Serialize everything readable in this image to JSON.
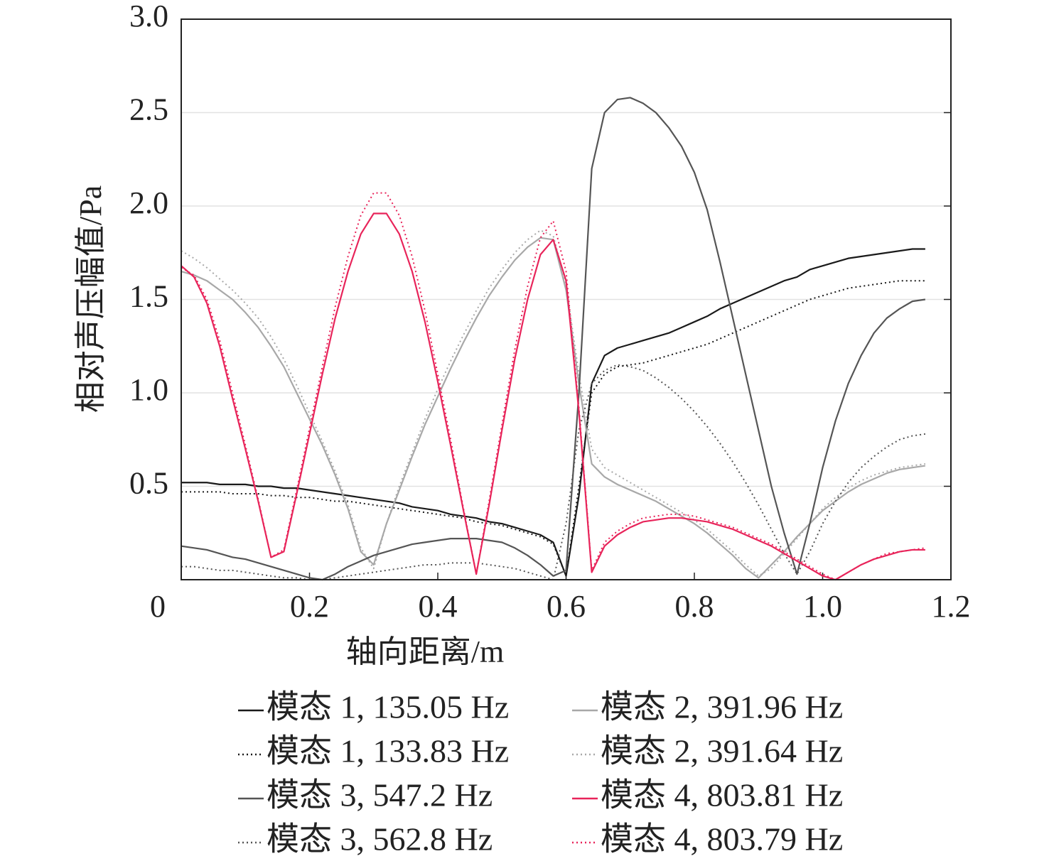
{
  "chart_data": {
    "type": "line",
    "xlabel": "轴向距离/m",
    "ylabel": "相对声压幅值/Pa",
    "x": [
      0,
      0.02,
      0.04,
      0.06,
      0.08,
      0.1,
      0.12,
      0.14,
      0.16,
      0.18,
      0.2,
      0.22,
      0.24,
      0.26,
      0.28,
      0.3,
      0.32,
      0.34,
      0.36,
      0.38,
      0.4,
      0.42,
      0.44,
      0.46,
      0.48,
      0.5,
      0.52,
      0.54,
      0.56,
      0.58,
      0.6,
      0.62,
      0.64,
      0.66,
      0.68,
      0.7,
      0.72,
      0.74,
      0.76,
      0.78,
      0.8,
      0.82,
      0.84,
      0.86,
      0.88,
      0.9,
      0.92,
      0.94,
      0.96,
      0.98,
      1.0,
      1.02,
      1.04,
      1.06,
      1.08,
      1.1,
      1.12,
      1.14,
      1.16
    ],
    "series": [
      {
        "name": "模态 1, 135.05 Hz",
        "color": "#1a1a1a",
        "style": "solid",
        "values": [
          0.52,
          0.52,
          0.52,
          0.51,
          0.51,
          0.51,
          0.5,
          0.5,
          0.49,
          0.49,
          0.48,
          0.47,
          0.46,
          0.45,
          0.44,
          0.43,
          0.42,
          0.41,
          0.39,
          0.38,
          0.37,
          0.35,
          0.34,
          0.33,
          0.31,
          0.3,
          0.28,
          0.26,
          0.24,
          0.2,
          0.02,
          0.45,
          1.05,
          1.2,
          1.24,
          1.26,
          1.28,
          1.3,
          1.32,
          1.35,
          1.38,
          1.41,
          1.45,
          1.48,
          1.51,
          1.54,
          1.57,
          1.6,
          1.62,
          1.66,
          1.68,
          1.7,
          1.72,
          1.73,
          1.74,
          1.75,
          1.76,
          1.77,
          1.77
        ]
      },
      {
        "name": "模态 1, 133.83 Hz",
        "color": "#1a1a1a",
        "style": "dotted",
        "values": [
          0.47,
          0.47,
          0.47,
          0.47,
          0.46,
          0.46,
          0.46,
          0.45,
          0.45,
          0.44,
          0.44,
          0.43,
          0.42,
          0.42,
          0.41,
          0.4,
          0.39,
          0.38,
          0.37,
          0.36,
          0.35,
          0.34,
          0.33,
          0.31,
          0.3,
          0.29,
          0.27,
          0.25,
          0.23,
          0.19,
          0.02,
          0.5,
          1.0,
          1.1,
          1.14,
          1.15,
          1.16,
          1.18,
          1.2,
          1.22,
          1.24,
          1.26,
          1.29,
          1.32,
          1.35,
          1.38,
          1.41,
          1.44,
          1.47,
          1.5,
          1.52,
          1.54,
          1.56,
          1.57,
          1.58,
          1.59,
          1.6,
          1.6,
          1.6
        ]
      },
      {
        "name": "模态 2, 391.96 Hz",
        "color": "#a8a8a8",
        "style": "solid",
        "values": [
          1.65,
          1.63,
          1.6,
          1.55,
          1.5,
          1.43,
          1.35,
          1.25,
          1.14,
          1.0,
          0.86,
          0.72,
          0.56,
          0.38,
          0.15,
          0.08,
          0.3,
          0.48,
          0.66,
          0.83,
          0.98,
          1.13,
          1.27,
          1.4,
          1.52,
          1.62,
          1.71,
          1.78,
          1.83,
          1.82,
          1.55,
          1.05,
          0.62,
          0.55,
          0.51,
          0.48,
          0.45,
          0.42,
          0.38,
          0.34,
          0.3,
          0.25,
          0.19,
          0.13,
          0.06,
          0.01,
          0.08,
          0.15,
          0.23,
          0.3,
          0.37,
          0.42,
          0.47,
          0.51,
          0.54,
          0.57,
          0.59,
          0.6,
          0.61
        ]
      },
      {
        "name": "模态 2, 391.64 Hz",
        "color": "#a8a8a8",
        "style": "dotted",
        "values": [
          1.76,
          1.72,
          1.67,
          1.61,
          1.55,
          1.48,
          1.4,
          1.3,
          1.18,
          1.04,
          0.89,
          0.74,
          0.58,
          0.4,
          0.17,
          0.06,
          0.3,
          0.5,
          0.68,
          0.86,
          1.02,
          1.17,
          1.31,
          1.44,
          1.56,
          1.66,
          1.75,
          1.82,
          1.87,
          1.84,
          1.58,
          1.1,
          0.7,
          0.6,
          0.56,
          0.52,
          0.48,
          0.44,
          0.4,
          0.36,
          0.32,
          0.27,
          0.21,
          0.15,
          0.08,
          0.02,
          0.06,
          0.14,
          0.22,
          0.3,
          0.38,
          0.44,
          0.49,
          0.53,
          0.56,
          0.58,
          0.6,
          0.61,
          0.62
        ]
      },
      {
        "name": "模态 3, 547.2 Hz",
        "color": "#555555",
        "style": "solid",
        "values": [
          0.18,
          0.17,
          0.16,
          0.14,
          0.12,
          0.11,
          0.09,
          0.07,
          0.05,
          0.03,
          0.01,
          0.0,
          0.03,
          0.07,
          0.1,
          0.13,
          0.15,
          0.17,
          0.19,
          0.2,
          0.21,
          0.22,
          0.22,
          0.22,
          0.21,
          0.2,
          0.17,
          0.13,
          0.08,
          0.02,
          0.05,
          1.0,
          2.2,
          2.5,
          2.57,
          2.58,
          2.55,
          2.5,
          2.42,
          2.32,
          2.18,
          1.98,
          1.7,
          1.4,
          1.1,
          0.8,
          0.5,
          0.25,
          0.03,
          0.3,
          0.6,
          0.85,
          1.05,
          1.2,
          1.32,
          1.4,
          1.45,
          1.49,
          1.5
        ]
      },
      {
        "name": "模态 3, 562.8 Hz",
        "color": "#555555",
        "style": "dotted",
        "values": [
          0.07,
          0.07,
          0.06,
          0.05,
          0.05,
          0.04,
          0.03,
          0.02,
          0.01,
          0.01,
          0.0,
          0.0,
          0.01,
          0.02,
          0.03,
          0.04,
          0.05,
          0.06,
          0.07,
          0.08,
          0.08,
          0.09,
          0.09,
          0.09,
          0.08,
          0.07,
          0.06,
          0.04,
          0.02,
          0.0,
          0.3,
          0.8,
          1.05,
          1.12,
          1.15,
          1.14,
          1.12,
          1.08,
          1.03,
          0.97,
          0.9,
          0.82,
          0.73,
          0.63,
          0.52,
          0.4,
          0.27,
          0.14,
          0.03,
          0.15,
          0.3,
          0.42,
          0.52,
          0.6,
          0.66,
          0.71,
          0.75,
          0.77,
          0.78
        ]
      },
      {
        "name": "模态 4, 803.81 Hz",
        "color": "#e8245a",
        "style": "solid",
        "values": [
          1.68,
          1.62,
          1.48,
          1.25,
          0.97,
          0.7,
          0.42,
          0.12,
          0.15,
          0.46,
          0.78,
          1.1,
          1.4,
          1.65,
          1.85,
          1.96,
          1.96,
          1.85,
          1.65,
          1.38,
          1.06,
          0.72,
          0.37,
          0.03,
          0.4,
          0.8,
          1.18,
          1.5,
          1.74,
          1.82,
          1.6,
          0.9,
          0.04,
          0.18,
          0.24,
          0.28,
          0.31,
          0.32,
          0.33,
          0.33,
          0.32,
          0.31,
          0.29,
          0.27,
          0.24,
          0.21,
          0.18,
          0.14,
          0.1,
          0.06,
          0.02,
          0.0,
          0.04,
          0.08,
          0.11,
          0.13,
          0.15,
          0.16,
          0.16
        ]
      },
      {
        "name": "模态 4, 803.79 Hz",
        "color": "#e8245a",
        "style": "dotted",
        "values": [
          1.67,
          1.63,
          1.5,
          1.28,
          1.0,
          0.72,
          0.43,
          0.12,
          0.16,
          0.48,
          0.81,
          1.14,
          1.46,
          1.73,
          1.95,
          2.07,
          2.07,
          1.95,
          1.73,
          1.44,
          1.1,
          0.75,
          0.38,
          0.03,
          0.42,
          0.83,
          1.23,
          1.57,
          1.83,
          1.92,
          1.65,
          0.92,
          0.05,
          0.2,
          0.26,
          0.3,
          0.33,
          0.34,
          0.35,
          0.35,
          0.34,
          0.32,
          0.3,
          0.28,
          0.25,
          0.22,
          0.19,
          0.15,
          0.11,
          0.07,
          0.03,
          0.0,
          0.04,
          0.08,
          0.11,
          0.14,
          0.15,
          0.16,
          0.17
        ]
      }
    ],
    "xlim": [
      0,
      1.2
    ],
    "xticks": [
      0,
      0.2,
      0.4,
      0.6,
      0.8,
      {
        "value": 1,
        "label": "1.0"
      },
      1.2
    ],
    "ylim": [
      0,
      3
    ],
    "yticks": [
      {
        "value": 0.5,
        "label": "0.5"
      },
      {
        "value": 1,
        "label": "1.0"
      },
      1.5,
      {
        "value": 2,
        "label": "2.0"
      },
      2.5,
      {
        "value": 3,
        "label": "3.0"
      }
    ],
    "grid": true,
    "legend": "bottom"
  }
}
